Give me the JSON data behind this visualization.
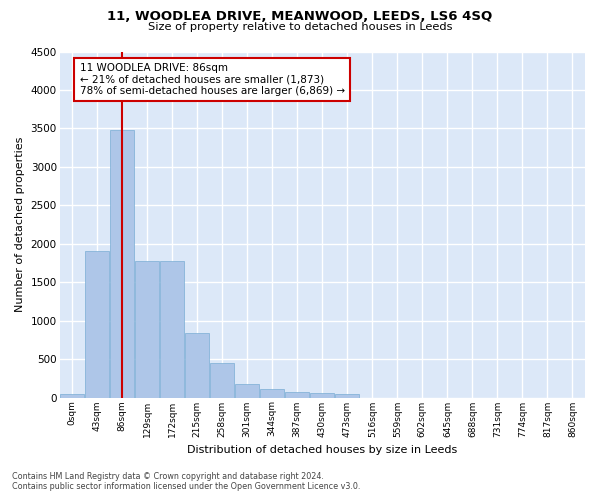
{
  "title": "11, WOODLEA DRIVE, MEANWOOD, LEEDS, LS6 4SQ",
  "subtitle": "Size of property relative to detached houses in Leeds",
  "xlabel": "Distribution of detached houses by size in Leeds",
  "ylabel": "Number of detached properties",
  "categories": [
    "0sqm",
    "43sqm",
    "86sqm",
    "129sqm",
    "172sqm",
    "215sqm",
    "258sqm",
    "301sqm",
    "344sqm",
    "387sqm",
    "430sqm",
    "473sqm",
    "516sqm",
    "559sqm",
    "602sqm",
    "645sqm",
    "688sqm",
    "731sqm",
    "774sqm",
    "817sqm",
    "860sqm"
  ],
  "values": [
    50,
    1900,
    3480,
    1770,
    1770,
    840,
    450,
    170,
    110,
    70,
    55,
    50,
    0,
    0,
    0,
    0,
    0,
    0,
    0,
    0,
    0
  ],
  "bar_color": "#aec6e8",
  "bar_edge_color": "#7aadd4",
  "background_color": "#dce8f8",
  "grid_color": "#ffffff",
  "annotation_box_color": "#cc0000",
  "property_line_color": "#cc0000",
  "property_sqm": "86sqm",
  "annotation_title": "11 WOODLEA DRIVE: 86sqm",
  "annotation_line1": "← 21% of detached houses are smaller (1,873)",
  "annotation_line2": "78% of semi-detached houses are larger (6,869) →",
  "ylim": [
    0,
    4500
  ],
  "yticks": [
    0,
    500,
    1000,
    1500,
    2000,
    2500,
    3000,
    3500,
    4000,
    4500
  ],
  "footer_line1": "Contains HM Land Registry data © Crown copyright and database right 2024.",
  "footer_line2": "Contains public sector information licensed under the Open Government Licence v3.0."
}
